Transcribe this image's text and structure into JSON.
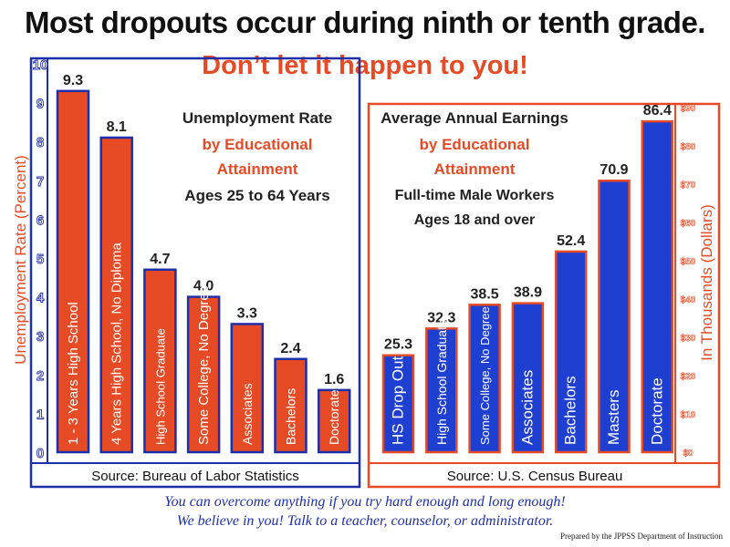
{
  "header": {
    "title": "Most dropouts occur during ninth or tenth grade.",
    "subtitle": "Don’t let it happen to you!"
  },
  "colors": {
    "left_bar": "#e64b26",
    "right_bar": "#1f3fd1",
    "left_frame": "#1f2fa8",
    "right_frame": "#e64b26"
  },
  "chart_data": [
    {
      "type": "bar",
      "title": "Unemployment Rate",
      "subtitle_lines": [
        "by Educational",
        "Attainment",
        "Ages 25 to 64 Years"
      ],
      "ylabel": "Unemployment Rate (Percent)",
      "ylim": [
        0,
        10
      ],
      "yticks": [
        "0",
        "1",
        "2",
        "3",
        "4",
        "5",
        "6",
        "7",
        "8",
        "9",
        "10"
      ],
      "categories": [
        "1 - 3 Years High School",
        "4 Years High School, No Diploma",
        "High School Graduate",
        "Some College, No Degree",
        "Associates",
        "Bachelors",
        "Doctorate"
      ],
      "values": [
        9.3,
        8.1,
        4.7,
        4.0,
        3.3,
        2.4,
        1.6
      ],
      "value_labels": [
        "9.3",
        "8.1",
        "4.7",
        "4.0",
        "3.3",
        "2.4",
        "1.6"
      ],
      "source": "Source: Bureau of Labor Statistics"
    },
    {
      "type": "bar",
      "title": "Average Annual Earnings",
      "subtitle_lines": [
        "by Educational",
        "Attainment",
        "Full-time Male Workers",
        "Ages 18 and over"
      ],
      "ylabel": "In Thousands (Dollars)",
      "ylim": [
        0,
        90
      ],
      "yticks": [
        "$0",
        "$10",
        "$20",
        "$30",
        "$40",
        "$50",
        "$60",
        "$70",
        "$80",
        "$90"
      ],
      "categories": [
        "HS Drop Out",
        "High School Graduate",
        "Some College, No Degree",
        "Associates",
        "Bachelors",
        "Masters",
        "Doctorate"
      ],
      "values": [
        25.3,
        32.3,
        38.5,
        38.9,
        52.4,
        70.9,
        86.4
      ],
      "value_labels": [
        "25.3",
        "32.3",
        "38.5",
        "38.9",
        "52.4",
        "70.9",
        "86.4"
      ],
      "source": "Source: U.S. Census Bureau"
    }
  ],
  "footer": {
    "line1": "You can overcome anything if you try hard enough and long enough!",
    "line2": "We believe in you! Talk to a teacher, counselor, or administrator.",
    "credit": "Prepared by the JPPSS Department of Instruction"
  }
}
